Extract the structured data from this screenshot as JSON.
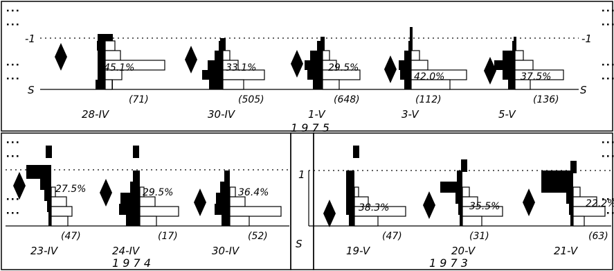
{
  "figure": {
    "year_top": "1 9 7 5",
    "year_bottom_left": "1 9 7 4",
    "year_bottom_right": "1 9 7 3",
    "axis_baseline_label": "S",
    "axis_unit_label": "1",
    "axis_unit_label_top": "-1",
    "ink_color": "#000000",
    "paper_color": "#ffffff"
  },
  "chart_data": [
    {
      "type": "bar",
      "panel": "top",
      "year": "1 9 7 5",
      "groups": [
        {
          "date": "28-IV",
          "percent": "45.1%",
          "n": "(71)"
        },
        {
          "date": "30-IV",
          "percent": "33.1%",
          "n": "(505)"
        },
        {
          "date": "1-V",
          "percent": "29.5%",
          "n": "(648)"
        },
        {
          "date": "3-V",
          "percent": "42.0%",
          "n": "(112)"
        },
        {
          "date": "5-V",
          "percent": "37.5%",
          "n": "(136)"
        }
      ]
    },
    {
      "type": "bar",
      "panel": "bottom-left",
      "year": "1 9 7 4",
      "groups": [
        {
          "date": "23-IV",
          "percent": "27.5%",
          "n": "(47)"
        },
        {
          "date": "24-IV",
          "percent": "29.5%",
          "n": "(17)"
        },
        {
          "date": "30-IV",
          "percent": "36.4%",
          "n": "(52)"
        }
      ]
    },
    {
      "type": "bar",
      "panel": "bottom-right",
      "year": "1 9 7 3",
      "groups": [
        {
          "date": "19-V",
          "percent": "38.3%",
          "n": "(47)"
        },
        {
          "date": "20-V",
          "percent": "35.5%",
          "n": "(31)"
        },
        {
          "date": "21-V",
          "percent": "22.2%",
          "n": "(63)"
        }
      ]
    }
  ]
}
